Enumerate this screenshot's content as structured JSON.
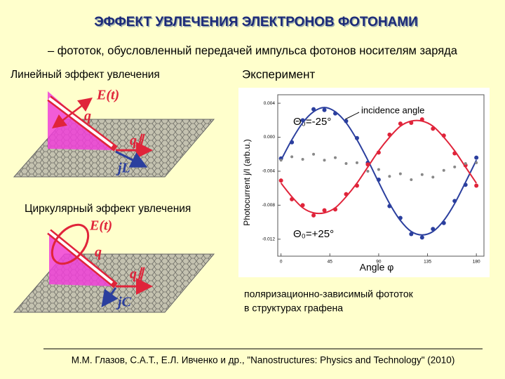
{
  "title": "ЭФФЕКТ УВЛЕЧЕНИЯ ЭЛЕКТРОНОВ ФОТОНАМИ",
  "subtitle": "– фототок, обусловленный передачей импульса фотонов носителям заряда",
  "linear": {
    "heading": "Линейный эффект увлечения",
    "field": "E(t)",
    "q": "q",
    "q_par": "q∥",
    "j": "jL"
  },
  "circular": {
    "heading": "Циркулярный эффект увлечения",
    "field": "E(t)",
    "q": "q",
    "q_par": "q∥",
    "j": "jC"
  },
  "experiment_heading": "Эксперимент",
  "caption": [
    "поляризационно-зависимый фототок",
    "в структурах графена"
  ],
  "citation": "М.М. Глазов, С.А.Т., Е.Л. Ивченко и др., \"Nanostructures: Physics and Technology\" (2010)",
  "chart_data": {
    "type": "scatter",
    "x_label": "Angle φ",
    "y_label": "Photocurrent j/I (arb.u.)",
    "annotations": [
      "Θ₀=-25°",
      "incidence angle",
      "Θ₀=+25°"
    ],
    "x": [
      0,
      10,
      20,
      30,
      40,
      50,
      60,
      70,
      80,
      90,
      100,
      110,
      120,
      130,
      140,
      150,
      160,
      170,
      180
    ],
    "xlim": [
      -3,
      187
    ],
    "xticks": [
      0,
      45,
      90,
      135,
      180
    ],
    "ylim": [
      -0.014,
      0.005
    ],
    "yticks": [
      0.004,
      {
        "value": 0,
        "label": "0.000"
      },
      -0.004,
      -0.008,
      -0.012
    ],
    "series": [
      {
        "color": "#2b3f9e",
        "style": "markers",
        "values": [
          -0.0025,
          -0.0006,
          0.002,
          0.0033,
          0.0032,
          0.0028,
          0.0019,
          -0.0001,
          -0.003,
          -0.005,
          -0.0081,
          -0.0095,
          -0.0114,
          -0.0118,
          -0.0108,
          -0.0101,
          -0.0075,
          -0.0056,
          -0.0024
        ]
      },
      {
        "color": "#2b3f9e",
        "style": "line",
        "values": [
          -0.0027,
          -0.0003,
          0.0017,
          0.003,
          0.0035,
          0.003,
          0.0017,
          -0.0003,
          -0.0027,
          -0.0053,
          -0.0078,
          -0.0098,
          -0.0111,
          -0.0115,
          -0.0111,
          -0.0098,
          -0.0078,
          -0.0053,
          -0.0027
        ]
      },
      {
        "color": "#e0243a",
        "style": "markers",
        "values": [
          -0.0051,
          -0.0073,
          -0.008,
          -0.0092,
          -0.0086,
          -0.0085,
          -0.0067,
          -0.0057,
          -0.0032,
          -0.0018,
          0.0003,
          0.0016,
          0.0017,
          0.0021,
          0.001,
          0.0002,
          -0.0019,
          -0.0033,
          -0.0057
        ]
      },
      {
        "color": "#e0243a",
        "style": "line",
        "values": [
          -0.0054,
          -0.007,
          -0.0083,
          -0.0089,
          -0.0089,
          -0.0083,
          -0.007,
          -0.0054,
          -0.0035,
          -0.0016,
          0,
          0.0013,
          0.0019,
          0.0019,
          0.0013,
          0,
          -0.0016,
          -0.0035,
          -0.0054
        ]
      },
      {
        "color": "#888888",
        "style": "markers",
        "values": [
          -0.0027,
          -0.0023,
          -0.0026,
          -0.002,
          -0.0027,
          -0.0024,
          -0.0031,
          -0.003,
          -0.004,
          -0.0038,
          -0.0046,
          -0.0043,
          -0.005,
          -0.0044,
          -0.0047,
          -0.0039,
          -0.0035,
          -0.0031,
          -0.003
        ]
      }
    ]
  }
}
